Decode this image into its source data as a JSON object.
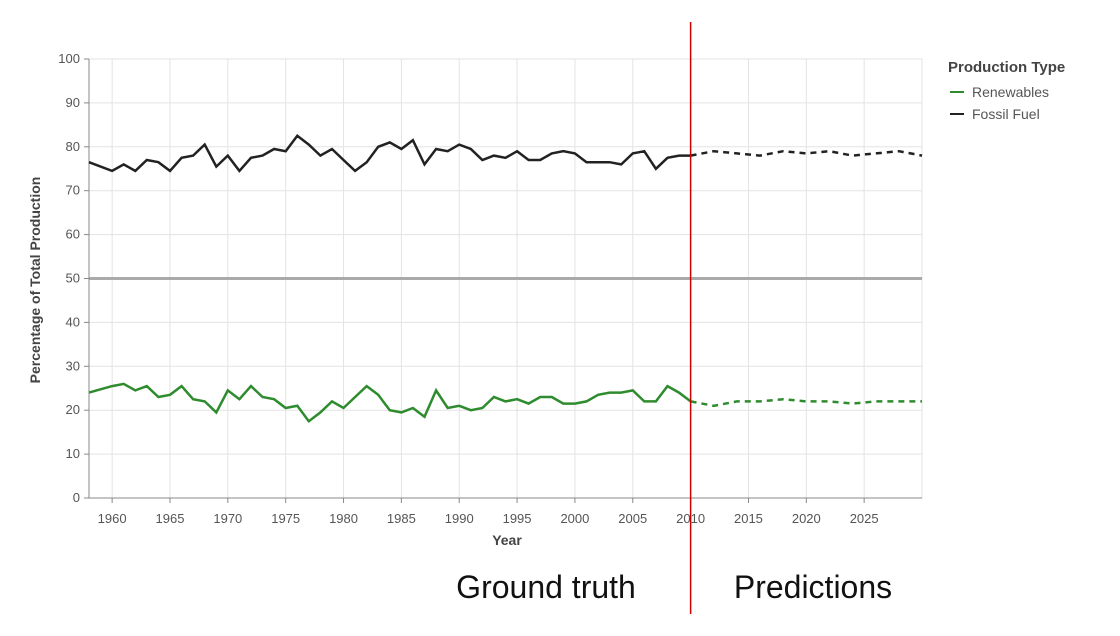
{
  "chart_data": {
    "type": "line",
    "xlabel": "Year",
    "ylabel": "Percentage of Total Production",
    "xlim": [
      1958,
      2030
    ],
    "ylim": [
      0,
      100
    ],
    "x_ticks": [
      1960,
      1965,
      1970,
      1975,
      1980,
      1985,
      1990,
      1995,
      2000,
      2005,
      2010,
      2015,
      2020,
      2025
    ],
    "y_ticks": [
      0,
      10,
      20,
      30,
      40,
      50,
      60,
      70,
      80,
      90,
      100
    ],
    "grid": true,
    "reference_line_y": 50,
    "split_year": 2010,
    "legend": {
      "title": "Production Type",
      "placement": "top-right",
      "entries": [
        "Renewables",
        "Fossil Fuel"
      ]
    },
    "annotations": {
      "left": "Ground truth",
      "right": "Predictions"
    },
    "colors": {
      "renewables": "#2e8b2e",
      "fossil": "#222222",
      "split_line": "#cc0000",
      "reference_line": "#aaaaaa",
      "grid": "#e3e3e3"
    },
    "series": [
      {
        "name": "Renewables",
        "x": [
          1958,
          1960,
          1961,
          1962,
          1963,
          1964,
          1965,
          1966,
          1967,
          1968,
          1969,
          1970,
          1971,
          1972,
          1973,
          1974,
          1975,
          1976,
          1977,
          1978,
          1979,
          1980,
          1981,
          1982,
          1983,
          1984,
          1985,
          1986,
          1987,
          1988,
          1989,
          1990,
          1991,
          1992,
          1993,
          1994,
          1995,
          1996,
          1997,
          1998,
          1999,
          2000,
          2001,
          2002,
          2003,
          2004,
          2005,
          2006,
          2007,
          2008,
          2009,
          2010
        ],
        "values": [
          24,
          25.5,
          26,
          24.5,
          25.5,
          23,
          23.5,
          25.5,
          22.5,
          22,
          19.5,
          24.5,
          22.5,
          25.5,
          23,
          22.5,
          20.5,
          21,
          17.5,
          19.5,
          22,
          20.5,
          23,
          25.5,
          23.5,
          20,
          19.5,
          20.5,
          18.5,
          24.5,
          20.5,
          21,
          20,
          20.5,
          23,
          22,
          22.5,
          21.5,
          23,
          23,
          21.5,
          21.5,
          22,
          23.5,
          24,
          24,
          24.5,
          22,
          22,
          25.5,
          24,
          22
        ]
      },
      {
        "name": "Fossil Fuel",
        "x": [
          1958,
          1960,
          1961,
          1962,
          1963,
          1964,
          1965,
          1966,
          1967,
          1968,
          1969,
          1970,
          1971,
          1972,
          1973,
          1974,
          1975,
          1976,
          1977,
          1978,
          1979,
          1980,
          1981,
          1982,
          1983,
          1984,
          1985,
          1986,
          1987,
          1988,
          1989,
          1990,
          1991,
          1992,
          1993,
          1994,
          1995,
          1996,
          1997,
          1998,
          1999,
          2000,
          2001,
          2002,
          2003,
          2004,
          2005,
          2006,
          2007,
          2008,
          2009,
          2010
        ],
        "values": [
          76.5,
          74.5,
          76,
          74.5,
          77,
          76.5,
          74.5,
          77.5,
          78,
          80.5,
          75.5,
          78,
          74.5,
          77.5,
          78,
          79.5,
          79,
          82.5,
          80.5,
          78,
          79.5,
          77,
          74.5,
          76.5,
          80,
          81,
          79.5,
          81.5,
          76,
          79.5,
          79,
          80.5,
          79.5,
          77,
          78,
          77.5,
          79,
          77,
          77,
          78.5,
          79,
          78.5,
          76.5,
          76.5,
          76.5,
          76,
          78.5,
          79,
          75,
          77.5,
          78,
          78
        ]
      },
      {
        "name": "Renewables (Predictions)",
        "x": [
          2010,
          2012,
          2014,
          2016,
          2018,
          2020,
          2022,
          2024,
          2026,
          2028,
          2030
        ],
        "values": [
          22,
          21,
          22,
          22,
          22.5,
          22,
          22,
          21.5,
          22,
          22,
          22
        ]
      },
      {
        "name": "Fossil Fuel (Predictions)",
        "x": [
          2010,
          2012,
          2014,
          2016,
          2018,
          2020,
          2022,
          2024,
          2026,
          2028,
          2030
        ],
        "values": [
          78,
          79,
          78.5,
          78,
          79,
          78.5,
          79,
          78,
          78.5,
          79,
          78
        ]
      }
    ]
  }
}
